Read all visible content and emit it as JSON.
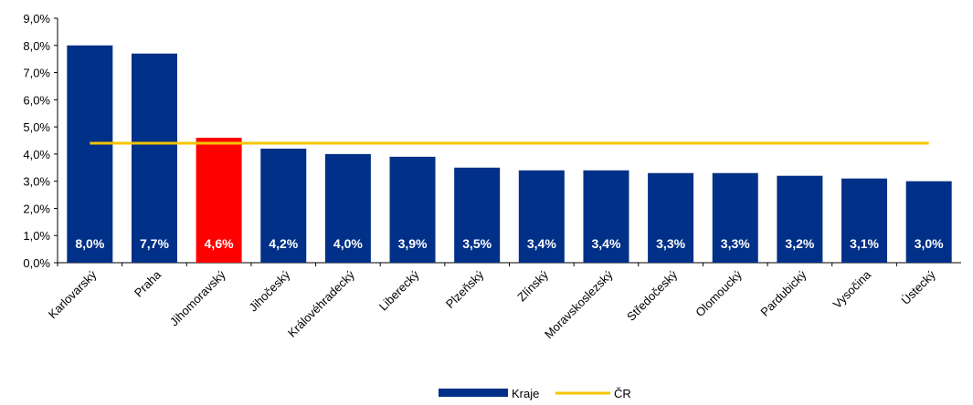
{
  "chart_data": {
    "type": "bar",
    "categories": [
      "Karlovarský",
      "Praha",
      "Jihomoravský",
      "Jihočeský",
      "Královéhradecký",
      "Liberecký",
      "Plzeňský",
      "Zlínský",
      "Moravskoslezský",
      "Středočeský",
      "Olomoucký",
      "Pardubický",
      "Vysočina",
      "Ústecký"
    ],
    "series": [
      {
        "name": "Kraje",
        "type": "bar",
        "color": "#003087",
        "colors": [
          "#003087",
          "#003087",
          "#ff0000",
          "#003087",
          "#003087",
          "#003087",
          "#003087",
          "#003087",
          "#003087",
          "#003087",
          "#003087",
          "#003087",
          "#003087",
          "#003087"
        ],
        "values": [
          8.0,
          7.7,
          4.6,
          4.2,
          4.0,
          3.9,
          3.5,
          3.4,
          3.4,
          3.3,
          3.3,
          3.2,
          3.1,
          3.0
        ],
        "value_labels": [
          "8,0%",
          "7,7%",
          "4,6%",
          "4,2%",
          "4,0%",
          "3,9%",
          "3,5%",
          "3,4%",
          "3,4%",
          "3,3%",
          "3,3%",
          "3,2%",
          "3,1%",
          "3,0%"
        ]
      },
      {
        "name": "ČR",
        "type": "line",
        "color": "#f5c400",
        "values": [
          4.4,
          4.4,
          4.4,
          4.4,
          4.4,
          4.4,
          4.4,
          4.4,
          4.4,
          4.4,
          4.4,
          4.4,
          4.4,
          4.4
        ]
      }
    ],
    "ylim": [
      0,
      9
    ],
    "yticks": [
      {
        "value": 0,
        "label": "0,0%"
      },
      {
        "value": 1,
        "label": "1,0%"
      },
      {
        "value": 2,
        "label": "2,0%"
      },
      {
        "value": 3,
        "label": "3,0%"
      },
      {
        "value": 4,
        "label": "4,0%"
      },
      {
        "value": 5,
        "label": "5,0%"
      },
      {
        "value": 6,
        "label": "6,0%"
      },
      {
        "value": 7,
        "label": "7,0%"
      },
      {
        "value": 8,
        "label": "8,0%"
      },
      {
        "value": 9,
        "label": "9,0%"
      }
    ],
    "grid": false,
    "legend": "bottom"
  }
}
